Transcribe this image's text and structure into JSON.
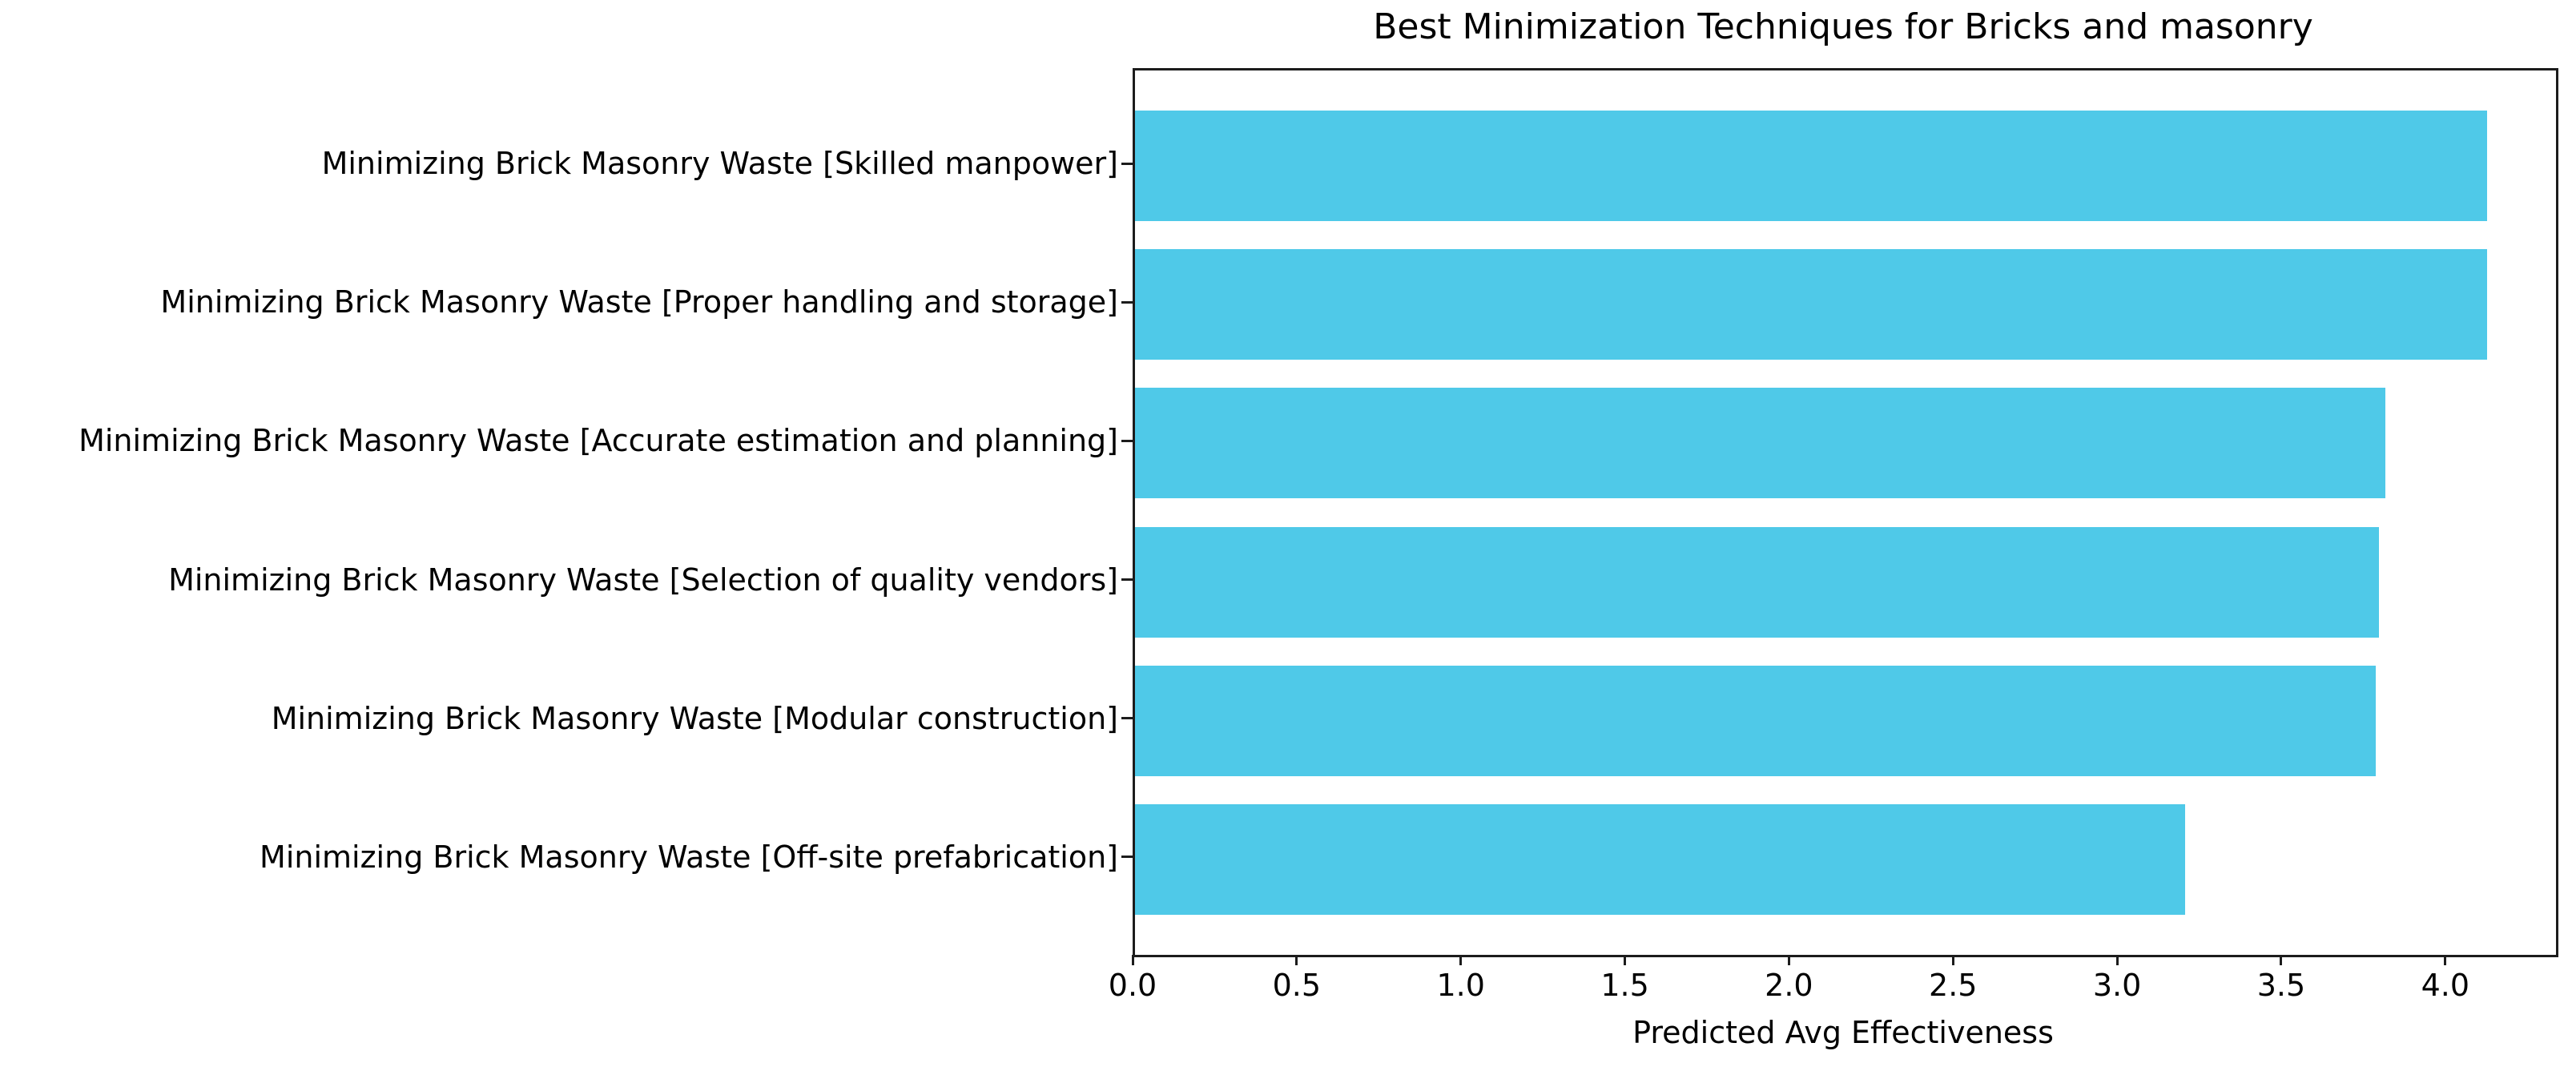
{
  "chart_data": {
    "type": "bar",
    "orientation": "horizontal",
    "title": "Best Minimization Techniques for Bricks and masonry",
    "xlabel": "Predicted Avg Effectiveness",
    "ylabel": "",
    "categories": [
      "Minimizing Brick Masonry Waste [Skilled manpower]",
      "Minimizing Brick Masonry Waste [Proper handling and storage]",
      "Minimizing Brick Masonry Waste [Accurate estimation and planning]",
      "Minimizing Brick Masonry Waste [Selection of quality vendors]",
      "Minimizing Brick Masonry Waste [Modular construction]",
      "Minimizing Brick Masonry Waste [Off-site prefabrication]"
    ],
    "values": [
      4.12,
      4.12,
      3.81,
      3.79,
      3.78,
      3.2
    ],
    "xlim": [
      0,
      4.33
    ],
    "xticks": [
      "0.0",
      "0.5",
      "1.0",
      "1.5",
      "2.0",
      "2.5",
      "3.0",
      "3.5",
      "4.0"
    ],
    "xtick_values": [
      0,
      0.5,
      1.0,
      1.5,
      2.0,
      2.5,
      3.0,
      3.5,
      4.0
    ],
    "grid": false,
    "legend": null,
    "colors": {
      "bar": "#4fc9e8",
      "axis": "#1c1c1c",
      "text": "#000000",
      "background": "#ffffff"
    }
  }
}
